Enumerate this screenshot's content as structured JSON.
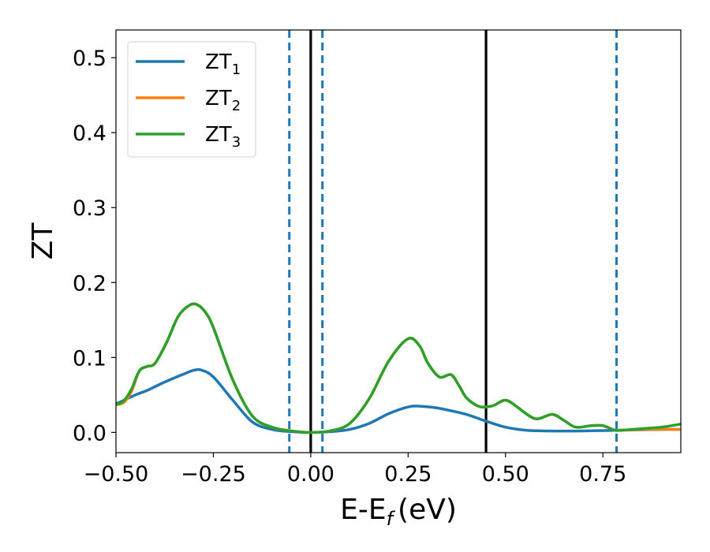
{
  "chart_data": {
    "type": "line",
    "xlabel": "E-E",
    "xlabel_sub": "f",
    "xlabel_unit": "(eV)",
    "ylabel": "ZT",
    "xlim": [
      -0.5,
      0.95
    ],
    "ylim": [
      -0.027,
      0.537
    ],
    "x_ticks": [
      -0.5,
      -0.25,
      0.0,
      0.25,
      0.5,
      0.75
    ],
    "x_tick_labels": [
      "−0.50",
      "−0.25",
      "0.00",
      "0.25",
      "0.50",
      "0.75"
    ],
    "y_ticks": [
      0.0,
      0.1,
      0.2,
      0.3,
      0.4,
      0.5
    ],
    "y_tick_labels": [
      "0.0",
      "0.1",
      "0.2",
      "0.3",
      "0.4",
      "0.5"
    ],
    "grid": false,
    "legend_position": "top-left",
    "series": [
      {
        "name": "ZT",
        "name_sub": "1",
        "color": "#1f77b4",
        "x": [
          -0.5,
          -0.45,
          -0.42,
          -0.38,
          -0.33,
          -0.3,
          -0.28,
          -0.25,
          -0.2,
          -0.15,
          -0.1,
          -0.05,
          0.0,
          0.05,
          0.1,
          0.15,
          0.2,
          0.25,
          0.28,
          0.32,
          0.35,
          0.4,
          0.45,
          0.5,
          0.55,
          0.6,
          0.7,
          0.8,
          0.9,
          0.95
        ],
        "y": [
          0.038,
          0.05,
          0.056,
          0.066,
          0.077,
          0.083,
          0.083,
          0.074,
          0.043,
          0.014,
          0.004,
          0.001,
          0.0,
          0.001,
          0.004,
          0.012,
          0.025,
          0.034,
          0.035,
          0.033,
          0.03,
          0.024,
          0.015,
          0.007,
          0.003,
          0.002,
          0.002,
          0.003,
          0.004,
          0.004
        ]
      },
      {
        "name": "ZT",
        "name_sub": "2",
        "color": "#ff7f0e",
        "x": [
          -0.5,
          -0.48,
          -0.46,
          -0.44,
          -0.42,
          -0.4,
          -0.37,
          -0.34,
          -0.31,
          -0.29,
          -0.27,
          -0.25,
          -0.2,
          -0.15,
          -0.1,
          -0.05,
          0.0,
          0.05,
          0.1,
          0.15,
          0.2,
          0.25,
          0.28,
          0.3,
          0.33,
          0.36,
          0.38,
          0.4,
          0.43,
          0.45,
          0.47,
          0.5,
          0.53,
          0.55,
          0.58,
          0.62,
          0.65,
          0.68,
          0.72,
          0.75,
          0.78,
          0.8,
          0.85,
          0.9,
          0.95
        ],
        "y": [
          0.037,
          0.04,
          0.055,
          0.082,
          0.088,
          0.092,
          0.12,
          0.155,
          0.17,
          0.17,
          0.16,
          0.14,
          0.07,
          0.022,
          0.007,
          0.002,
          0.0,
          0.002,
          0.012,
          0.045,
          0.095,
          0.125,
          0.115,
          0.093,
          0.074,
          0.077,
          0.063,
          0.046,
          0.035,
          0.034,
          0.036,
          0.043,
          0.034,
          0.026,
          0.018,
          0.024,
          0.016,
          0.007,
          0.009,
          0.009,
          0.003,
          0.003,
          0.004,
          0.004,
          0.004
        ]
      },
      {
        "name": "ZT",
        "name_sub": "3",
        "color": "#2ca02c",
        "x": [
          -0.5,
          -0.48,
          -0.46,
          -0.44,
          -0.42,
          -0.4,
          -0.37,
          -0.34,
          -0.31,
          -0.29,
          -0.27,
          -0.25,
          -0.2,
          -0.15,
          -0.1,
          -0.05,
          0.0,
          0.05,
          0.1,
          0.15,
          0.2,
          0.25,
          0.28,
          0.3,
          0.33,
          0.36,
          0.38,
          0.4,
          0.43,
          0.45,
          0.47,
          0.5,
          0.53,
          0.55,
          0.58,
          0.62,
          0.65,
          0.68,
          0.72,
          0.75,
          0.78,
          0.8,
          0.85,
          0.9,
          0.95
        ],
        "y": [
          0.037,
          0.042,
          0.058,
          0.082,
          0.088,
          0.092,
          0.12,
          0.155,
          0.17,
          0.17,
          0.16,
          0.14,
          0.07,
          0.022,
          0.007,
          0.002,
          0.0,
          0.002,
          0.012,
          0.045,
          0.095,
          0.125,
          0.115,
          0.093,
          0.074,
          0.077,
          0.063,
          0.046,
          0.035,
          0.034,
          0.036,
          0.043,
          0.034,
          0.026,
          0.018,
          0.024,
          0.016,
          0.007,
          0.009,
          0.009,
          0.003,
          0.003,
          0.005,
          0.007,
          0.011
        ]
      }
    ],
    "vertical_lines": [
      {
        "x": 0.0,
        "style": "solid",
        "color": "#000000"
      },
      {
        "x": 0.45,
        "style": "solid",
        "color": "#000000"
      },
      {
        "x": -0.055,
        "style": "dashed",
        "color": "#1f77b4"
      },
      {
        "x": 0.03,
        "style": "dashed",
        "color": "#1f77b4"
      },
      {
        "x": 0.785,
        "style": "dashed",
        "color": "#1f77b4"
      }
    ]
  }
}
